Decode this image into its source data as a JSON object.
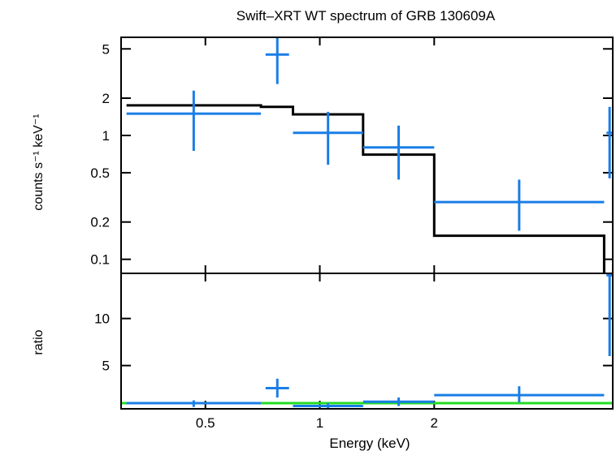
{
  "chart_data": {
    "title": "Swift–XRT WT spectrum of GRB 130609A",
    "xlabel": "Energy (keV)",
    "x_scale": "log",
    "xlim": [
      0.3,
      5.9
    ],
    "x_ticks": [
      {
        "value": 0.5,
        "label": "0.5"
      },
      {
        "value": 1,
        "label": "1"
      },
      {
        "value": 2,
        "label": "2"
      }
    ],
    "panels": [
      {
        "id": "spectrum",
        "type": "scatter",
        "ylabel": "counts s⁻¹ keV⁻¹",
        "y_scale": "log",
        "ylim": [
          0.077,
          6.2
        ],
        "y_ticks": [
          {
            "value": 0.1,
            "label": "0.1"
          },
          {
            "value": 0.2,
            "label": "0.2"
          },
          {
            "value": 0.5,
            "label": "0.5"
          },
          {
            "value": 1,
            "label": "1"
          },
          {
            "value": 2,
            "label": "2"
          },
          {
            "value": 5,
            "label": "5"
          }
        ],
        "data_color": "#1a7ee6",
        "model_color": "#000000",
        "data": [
          {
            "x_lo": 0.31,
            "x_hi": 0.7,
            "y": 1.5,
            "y_lo": 0.75,
            "y_hi": 2.3
          },
          {
            "x_lo": 0.72,
            "x_hi": 0.83,
            "y": 4.5,
            "y_lo": 2.6,
            "y_hi": 6.2
          },
          {
            "x_lo": 0.85,
            "x_hi": 1.3,
            "y": 1.05,
            "y_lo": 0.58,
            "y_hi": 1.55
          },
          {
            "x_lo": 1.3,
            "x_hi": 2.0,
            "y": 0.8,
            "y_lo": 0.44,
            "y_hi": 1.2
          },
          {
            "x_lo": 2.0,
            "x_hi": 5.6,
            "y": 0.29,
            "y_lo": 0.17,
            "y_hi": 0.44
          },
          {
            "x_lo": 5.68,
            "x_hi": 5.9,
            "y": 1.05,
            "y_lo": 0.45,
            "y_hi": 1.7
          }
        ],
        "model_steps": [
          {
            "x_lo": 0.31,
            "x_hi": 0.7,
            "y": 1.75
          },
          {
            "x_lo": 0.7,
            "x_hi": 0.85,
            "y": 1.7
          },
          {
            "x_lo": 0.85,
            "x_hi": 1.3,
            "y": 1.48
          },
          {
            "x_lo": 1.3,
            "x_hi": 2.0,
            "y": 0.7
          },
          {
            "x_lo": 2.0,
            "x_hi": 5.6,
            "y": 0.155
          }
        ]
      },
      {
        "id": "ratio",
        "type": "scatter",
        "ylabel": "ratio",
        "y_scale": "linear",
        "ylim": [
          0.4,
          14.8
        ],
        "y_ticks": [
          {
            "value": 5,
            "label": "5"
          },
          {
            "value": 10,
            "label": "10"
          }
        ],
        "data_color": "#1a7ee6",
        "unity_line_color": "#22dd22",
        "unity_line_value": 1,
        "data": [
          {
            "x_lo": 0.31,
            "x_hi": 0.7,
            "y": 1.0,
            "y_lo": 0.6,
            "y_hi": 1.3
          },
          {
            "x_lo": 0.72,
            "x_hi": 0.83,
            "y": 2.6,
            "y_lo": 1.6,
            "y_hi": 3.6
          },
          {
            "x_lo": 0.85,
            "x_hi": 1.3,
            "y": 0.7,
            "y_lo": 0.4,
            "y_hi": 1.0
          },
          {
            "x_lo": 1.3,
            "x_hi": 2.0,
            "y": 1.15,
            "y_lo": 0.7,
            "y_hi": 1.6
          },
          {
            "x_lo": 2.0,
            "x_hi": 5.6,
            "y": 1.85,
            "y_lo": 1.1,
            "y_hi": 2.8
          },
          {
            "x_lo": 5.68,
            "x_hi": 5.9,
            "y": 14.6,
            "y_lo": 6.0,
            "y_hi": 14.8
          }
        ]
      }
    ]
  }
}
